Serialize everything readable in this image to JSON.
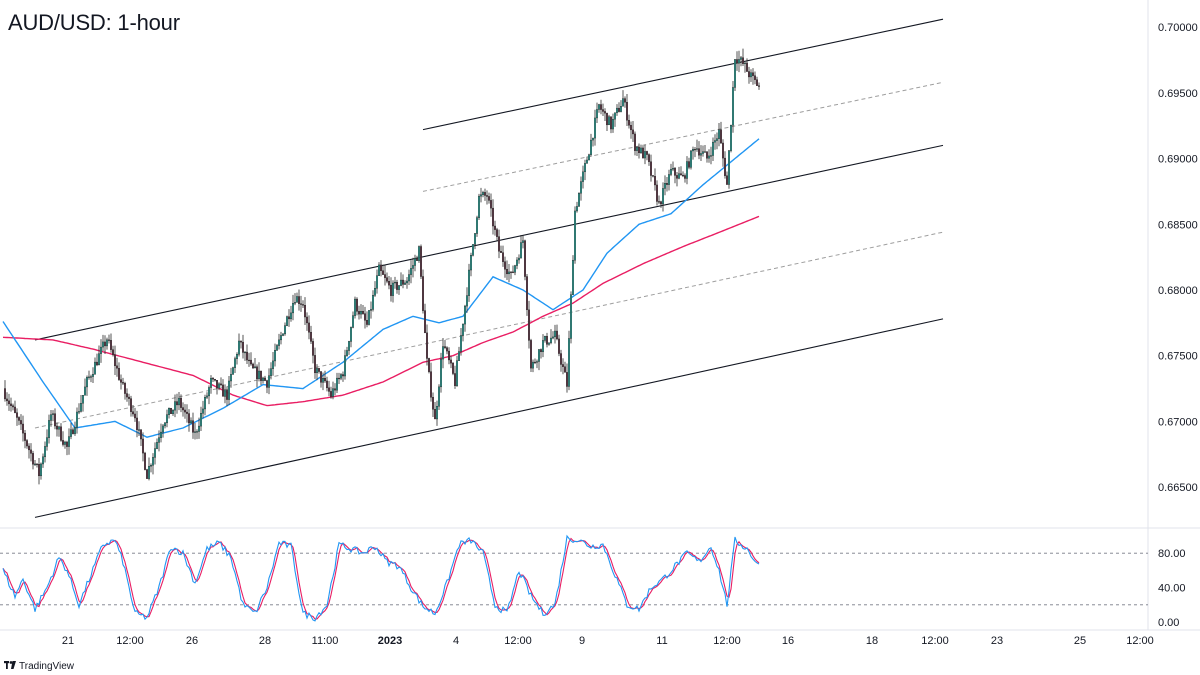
{
  "title": "AUD/USD: 1-hour",
  "brand": "TradingView",
  "colors": {
    "candle_up": "#26a69a",
    "candle_body": "#5d3242",
    "sma_fast": "#2196f3",
    "sma_slow": "#e91e63",
    "stoch_k": "#2196f3",
    "stoch_d": "#e91e63",
    "channel": "#131722",
    "midline": "#9e9e9e"
  },
  "chart_data": {
    "type": "line",
    "price_axis": {
      "ticks": [
        "0.70000",
        "0.69500",
        "0.69000",
        "0.68500",
        "0.68000",
        "0.67500",
        "0.67000",
        "0.66500"
      ],
      "ylim": [
        0.6625,
        0.7013
      ]
    },
    "time_axis": {
      "ticks": [
        {
          "label": "21",
          "bold": false
        },
        {
          "label": "12:00",
          "bold": false
        },
        {
          "label": "26",
          "bold": false
        },
        {
          "label": "28",
          "bold": false
        },
        {
          "label": "11:00",
          "bold": false
        },
        {
          "label": "2023",
          "bold": true
        },
        {
          "label": "4",
          "bold": false
        },
        {
          "label": "12:00",
          "bold": false
        },
        {
          "label": "9",
          "bold": false
        },
        {
          "label": "11",
          "bold": false
        },
        {
          "label": "12:00",
          "bold": false
        },
        {
          "label": "16",
          "bold": false
        },
        {
          "label": "18",
          "bold": false
        },
        {
          "label": "12:00",
          "bold": false
        },
        {
          "label": "23",
          "bold": false
        },
        {
          "label": "25",
          "bold": false
        },
        {
          "label": "12:00",
          "bold": false
        }
      ]
    },
    "price_anchors": [
      [
        0,
        0.6725
      ],
      [
        8,
        0.6698
      ],
      [
        18,
        0.666
      ],
      [
        24,
        0.6705
      ],
      [
        32,
        0.668
      ],
      [
        42,
        0.673
      ],
      [
        52,
        0.6763
      ],
      [
        60,
        0.6725
      ],
      [
        66,
        0.6705
      ],
      [
        72,
        0.666
      ],
      [
        80,
        0.67
      ],
      [
        88,
        0.6715
      ],
      [
        96,
        0.669
      ],
      [
        104,
        0.673
      ],
      [
        112,
        0.672
      ],
      [
        118,
        0.676
      ],
      [
        124,
        0.674
      ],
      [
        132,
        0.673
      ],
      [
        140,
        0.677
      ],
      [
        146,
        0.6795
      ],
      [
        150,
        0.679
      ],
      [
        156,
        0.674
      ],
      [
        164,
        0.672
      ],
      [
        170,
        0.6738
      ],
      [
        176,
        0.679
      ],
      [
        182,
        0.6773
      ],
      [
        188,
        0.6815
      ],
      [
        194,
        0.68
      ],
      [
        202,
        0.6808
      ],
      [
        208,
        0.683
      ],
      [
        212,
        0.6745
      ],
      [
        216,
        0.67
      ],
      [
        220,
        0.676
      ],
      [
        226,
        0.673
      ],
      [
        232,
        0.68
      ],
      [
        238,
        0.687
      ],
      [
        242,
        0.6872
      ],
      [
        248,
        0.683
      ],
      [
        254,
        0.681
      ],
      [
        260,
        0.6838
      ],
      [
        264,
        0.674
      ],
      [
        270,
        0.676
      ],
      [
        276,
        0.6765
      ],
      [
        282,
        0.6728
      ],
      [
        286,
        0.686
      ],
      [
        292,
        0.69
      ],
      [
        298,
        0.694
      ],
      [
        304,
        0.6925
      ],
      [
        310,
        0.6945
      ],
      [
        316,
        0.691
      ],
      [
        322,
        0.69
      ],
      [
        328,
        0.6865
      ],
      [
        334,
        0.689
      ],
      [
        340,
        0.6885
      ],
      [
        346,
        0.691
      ],
      [
        352,
        0.69
      ],
      [
        358,
        0.692
      ],
      [
        362,
        0.688
      ],
      [
        366,
        0.6978
      ],
      [
        370,
        0.6972
      ],
      [
        374,
        0.6962
      ],
      [
        378,
        0.6955
      ]
    ],
    "sma_fast": [
      [
        0,
        0.6776
      ],
      [
        20,
        0.673
      ],
      [
        36,
        0.6695
      ],
      [
        56,
        0.67
      ],
      [
        72,
        0.6688
      ],
      [
        90,
        0.6695
      ],
      [
        110,
        0.671
      ],
      [
        130,
        0.6728
      ],
      [
        150,
        0.6725
      ],
      [
        170,
        0.6745
      ],
      [
        190,
        0.677
      ],
      [
        205,
        0.678
      ],
      [
        218,
        0.6775
      ],
      [
        230,
        0.678
      ],
      [
        245,
        0.681
      ],
      [
        260,
        0.68
      ],
      [
        275,
        0.6785
      ],
      [
        290,
        0.68
      ],
      [
        302,
        0.6828
      ],
      [
        318,
        0.685
      ],
      [
        334,
        0.6858
      ],
      [
        350,
        0.688
      ],
      [
        362,
        0.6895
      ],
      [
        378,
        0.6915
      ]
    ],
    "sma_slow": [
      [
        0,
        0.6764
      ],
      [
        25,
        0.6762
      ],
      [
        45,
        0.6755
      ],
      [
        70,
        0.6745
      ],
      [
        95,
        0.6735
      ],
      [
        115,
        0.672
      ],
      [
        132,
        0.6712
      ],
      [
        150,
        0.6715
      ],
      [
        170,
        0.672
      ],
      [
        190,
        0.673
      ],
      [
        210,
        0.6745
      ],
      [
        225,
        0.675
      ],
      [
        240,
        0.676
      ],
      [
        255,
        0.6768
      ],
      [
        270,
        0.678
      ],
      [
        285,
        0.679
      ],
      [
        300,
        0.6805
      ],
      [
        320,
        0.682
      ],
      [
        340,
        0.6833
      ],
      [
        360,
        0.6845
      ],
      [
        378,
        0.6856
      ]
    ],
    "channel_lines": [
      {
        "style": "solid",
        "from": [
          16,
          0.6627
        ],
        "to": [
          470,
          0.6778
        ]
      },
      {
        "style": "solid",
        "from": [
          16,
          0.6762
        ],
        "to": [
          470,
          0.691
        ]
      },
      {
        "style": "solid",
        "from": [
          210,
          0.6922
        ],
        "to": [
          470,
          0.7006
        ]
      },
      {
        "style": "dashed",
        "from": [
          16,
          0.6695
        ],
        "to": [
          470,
          0.6844
        ]
      },
      {
        "style": "dashed",
        "from": [
          210,
          0.6875
        ],
        "to": [
          470,
          0.6958
        ]
      }
    ],
    "stochastic": {
      "ticks": [
        "80.00",
        "40.00",
        "0.00"
      ],
      "levels": [
        80,
        20
      ],
      "k_anchors": [
        [
          0,
          60
        ],
        [
          6,
          30
        ],
        [
          10,
          50
        ],
        [
          16,
          15
        ],
        [
          22,
          40
        ],
        [
          28,
          75
        ],
        [
          32,
          60
        ],
        [
          38,
          20
        ],
        [
          44,
          55
        ],
        [
          50,
          90
        ],
        [
          56,
          95
        ],
        [
          60,
          70
        ],
        [
          66,
          10
        ],
        [
          72,
          5
        ],
        [
          78,
          40
        ],
        [
          84,
          88
        ],
        [
          90,
          80
        ],
        [
          96,
          45
        ],
        [
          102,
          85
        ],
        [
          108,
          92
        ],
        [
          114,
          75
        ],
        [
          120,
          20
        ],
        [
          126,
          10
        ],
        [
          132,
          40
        ],
        [
          138,
          92
        ],
        [
          144,
          88
        ],
        [
          150,
          10
        ],
        [
          156,
          5
        ],
        [
          162,
          20
        ],
        [
          168,
          90
        ],
        [
          174,
          85
        ],
        [
          180,
          80
        ],
        [
          186,
          88
        ],
        [
          192,
          70
        ],
        [
          198,
          65
        ],
        [
          204,
          40
        ],
        [
          210,
          18
        ],
        [
          216,
          10
        ],
        [
          222,
          45
        ],
        [
          228,
          90
        ],
        [
          234,
          95
        ],
        [
          240,
          80
        ],
        [
          246,
          20
        ],
        [
          252,
          10
        ],
        [
          258,
          60
        ],
        [
          264,
          30
        ],
        [
          270,
          10
        ],
        [
          276,
          20
        ],
        [
          282,
          98
        ],
        [
          288,
          95
        ],
        [
          294,
          88
        ],
        [
          300,
          90
        ],
        [
          306,
          55
        ],
        [
          312,
          20
        ],
        [
          318,
          15
        ],
        [
          324,
          40
        ],
        [
          330,
          50
        ],
        [
          336,
          65
        ],
        [
          342,
          80
        ],
        [
          348,
          70
        ],
        [
          354,
          88
        ],
        [
          358,
          60
        ],
        [
          362,
          20
        ],
        [
          366,
          95
        ],
        [
          372,
          85
        ],
        [
          378,
          65
        ]
      ]
    }
  }
}
